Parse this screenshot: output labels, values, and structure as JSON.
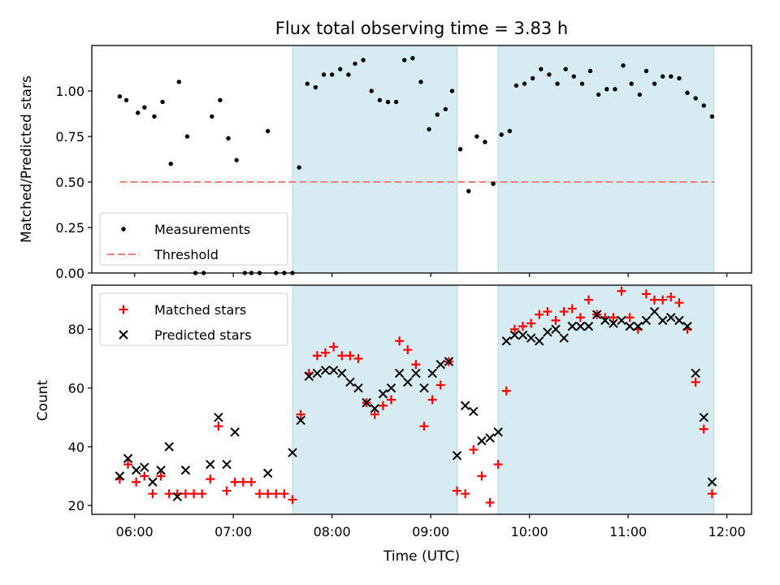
{
  "chart_title": "Flux total observing time = 3.83 h",
  "x_ticks": [
    {
      "h": 6,
      "label": "06:00"
    },
    {
      "h": 7,
      "label": "07:00"
    },
    {
      "h": 8,
      "label": "08:00"
    },
    {
      "h": 9,
      "label": "09:00"
    },
    {
      "h": 10,
      "label": "10:00"
    },
    {
      "h": 11,
      "label": "11:00"
    },
    {
      "h": 12,
      "label": "12:00"
    }
  ],
  "colors": {
    "shade": "#add8e6",
    "threshold": "#f08080",
    "matched": "#ff0000",
    "predicted": "#000000"
  },
  "chart_data": [
    {
      "type": "scatter",
      "ylabel": "Matched/Predicted stars",
      "xlim": [
        "05:34",
        "12:15"
      ],
      "ylim": [
        0,
        1.25
      ],
      "yticks": [
        "0.00",
        "0.25",
        "0.50",
        "0.75",
        "1.00"
      ],
      "shaded_ranges": [
        [
          "07:36",
          "09:16"
        ],
        [
          "09:41",
          "11:52"
        ]
      ],
      "threshold": {
        "name": "Threshold",
        "y": 0.5,
        "x_from": "05:51",
        "x_to": "11:52"
      },
      "legend": [
        "Measurements",
        "Threshold"
      ],
      "legend_loc": "lower left",
      "series": [
        {
          "name": "Measurements",
          "points": [
            [
              "05:51",
              0.97
            ],
            [
              "05:55",
              0.95
            ],
            [
              "06:02",
              0.88
            ],
            [
              "06:06",
              0.91
            ],
            [
              "06:12",
              0.86
            ],
            [
              "06:17",
              0.94
            ],
            [
              "06:22",
              0.6
            ],
            [
              "06:27",
              1.05
            ],
            [
              "06:32",
              0.75
            ],
            [
              "06:37",
              0.0
            ],
            [
              "06:42",
              0.0
            ],
            [
              "06:47",
              0.86
            ],
            [
              "06:52",
              0.95
            ],
            [
              "06:57",
              0.74
            ],
            [
              "07:02",
              0.62
            ],
            [
              "07:07",
              0.0
            ],
            [
              "07:11",
              0.0
            ],
            [
              "07:16",
              0.0
            ],
            [
              "07:21",
              0.78
            ],
            [
              "07:26",
              0.0
            ],
            [
              "07:31",
              0.0
            ],
            [
              "07:36",
              0.0
            ],
            [
              "07:40",
              0.58
            ],
            [
              "07:45",
              1.04
            ],
            [
              "07:50",
              1.02
            ],
            [
              "07:55",
              1.09
            ],
            [
              "08:00",
              1.09
            ],
            [
              "08:05",
              1.12
            ],
            [
              "08:10",
              1.09
            ],
            [
              "08:14",
              1.15
            ],
            [
              "08:19",
              1.17
            ],
            [
              "08:24",
              1.0
            ],
            [
              "08:29",
              0.95
            ],
            [
              "08:34",
              0.94
            ],
            [
              "08:39",
              0.94
            ],
            [
              "08:44",
              1.17
            ],
            [
              "08:49",
              1.18
            ],
            [
              "08:54",
              1.05
            ],
            [
              "08:59",
              0.79
            ],
            [
              "09:04",
              0.87
            ],
            [
              "09:09",
              0.9
            ],
            [
              "09:13",
              1.0
            ],
            [
              "09:18",
              0.68
            ],
            [
              "09:23",
              0.45
            ],
            [
              "09:28",
              0.75
            ],
            [
              "09:33",
              0.72
            ],
            [
              "09:38",
              0.49
            ],
            [
              "09:43",
              0.76
            ],
            [
              "09:48",
              0.78
            ],
            [
              "09:52",
              1.03
            ],
            [
              "09:57",
              1.04
            ],
            [
              "10:02",
              1.07
            ],
            [
              "10:07",
              1.12
            ],
            [
              "10:12",
              1.09
            ],
            [
              "10:17",
              1.04
            ],
            [
              "10:22",
              1.12
            ],
            [
              "10:27",
              1.08
            ],
            [
              "10:32",
              1.04
            ],
            [
              "10:37",
              1.11
            ],
            [
              "10:42",
              0.98
            ],
            [
              "10:47",
              1.01
            ],
            [
              "10:52",
              1.01
            ],
            [
              "10:57",
              1.14
            ],
            [
              "11:02",
              1.04
            ],
            [
              "11:07",
              0.98
            ],
            [
              "11:11",
              1.11
            ],
            [
              "11:16",
              1.04
            ],
            [
              "11:21",
              1.08
            ],
            [
              "11:26",
              1.08
            ],
            [
              "11:31",
              1.07
            ],
            [
              "11:36",
              0.99
            ],
            [
              "11:41",
              0.96
            ],
            [
              "11:46",
              0.92
            ],
            [
              "11:51",
              0.86
            ]
          ]
        }
      ]
    },
    {
      "type": "scatter",
      "xlabel": "Time (UTC)",
      "ylabel": "Count",
      "xlim": [
        "05:34",
        "12:15"
      ],
      "ylim": [
        17,
        95
      ],
      "yticks": [
        "20",
        "40",
        "60",
        "80"
      ],
      "shaded_ranges": [
        [
          "07:36",
          "09:16"
        ],
        [
          "09:41",
          "11:52"
        ]
      ],
      "legend": [
        "Matched stars",
        "Predicted stars"
      ],
      "legend_loc": "upper left",
      "series": [
        {
          "name": "Matched stars",
          "marker": "+",
          "points": [
            [
              "05:51",
              29
            ],
            [
              "05:56",
              34
            ],
            [
              "06:01",
              28
            ],
            [
              "06:06",
              30
            ],
            [
              "06:11",
              24
            ],
            [
              "06:16",
              30
            ],
            [
              "06:21",
              24
            ],
            [
              "06:26",
              24
            ],
            [
              "06:31",
              24
            ],
            [
              "06:36",
              24
            ],
            [
              "06:41",
              24
            ],
            [
              "06:46",
              29
            ],
            [
              "06:51",
              47
            ],
            [
              "06:56",
              25
            ],
            [
              "07:01",
              28
            ],
            [
              "07:06",
              28
            ],
            [
              "07:11",
              28
            ],
            [
              "07:16",
              24
            ],
            [
              "07:21",
              24
            ],
            [
              "07:26",
              24
            ],
            [
              "07:31",
              24
            ],
            [
              "07:36",
              22
            ],
            [
              "07:41",
              51
            ],
            [
              "07:46",
              65
            ],
            [
              "07:51",
              71
            ],
            [
              "07:56",
              72
            ],
            [
              "08:01",
              74
            ],
            [
              "08:06",
              71
            ],
            [
              "08:11",
              71
            ],
            [
              "08:16",
              70
            ],
            [
              "08:21",
              55
            ],
            [
              "08:26",
              51
            ],
            [
              "08:31",
              54
            ],
            [
              "08:36",
              56
            ],
            [
              "08:41",
              76
            ],
            [
              "08:46",
              73
            ],
            [
              "08:51",
              68
            ],
            [
              "08:56",
              47
            ],
            [
              "09:01",
              56
            ],
            [
              "09:06",
              61
            ],
            [
              "09:11",
              69
            ],
            [
              "09:16",
              25
            ],
            [
              "09:21",
              24
            ],
            [
              "09:26",
              39
            ],
            [
              "09:31",
              30
            ],
            [
              "09:36",
              21
            ],
            [
              "09:41",
              34
            ],
            [
              "09:46",
              59
            ],
            [
              "09:51",
              80
            ],
            [
              "09:56",
              81
            ],
            [
              "10:01",
              82
            ],
            [
              "10:06",
              85
            ],
            [
              "10:11",
              86
            ],
            [
              "10:16",
              83
            ],
            [
              "10:21",
              86
            ],
            [
              "10:26",
              87
            ],
            [
              "10:31",
              84
            ],
            [
              "10:36",
              90
            ],
            [
              "10:41",
              85
            ],
            [
              "10:46",
              84
            ],
            [
              "10:51",
              84
            ],
            [
              "10:56",
              93
            ],
            [
              "11:01",
              84
            ],
            [
              "11:06",
              80
            ],
            [
              "11:11",
              92
            ],
            [
              "11:16",
              90
            ],
            [
              "11:21",
              90
            ],
            [
              "11:26",
              91
            ],
            [
              "11:31",
              89
            ],
            [
              "11:36",
              80
            ],
            [
              "11:41",
              62
            ],
            [
              "11:46",
              46
            ],
            [
              "11:51",
              24
            ]
          ]
        },
        {
          "name": "Predicted stars",
          "marker": "x",
          "points": [
            [
              "05:51",
              30
            ],
            [
              "05:56",
              36
            ],
            [
              "06:01",
              32
            ],
            [
              "06:06",
              33
            ],
            [
              "06:11",
              28
            ],
            [
              "06:16",
              32
            ],
            [
              "06:21",
              40
            ],
            [
              "06:26",
              23
            ],
            [
              "06:31",
              32
            ],
            [
              "06:46",
              34
            ],
            [
              "06:51",
              50
            ],
            [
              "06:56",
              34
            ],
            [
              "07:01",
              45
            ],
            [
              "07:21",
              31
            ],
            [
              "07:36",
              38
            ],
            [
              "07:41",
              49
            ],
            [
              "07:46",
              64
            ],
            [
              "07:51",
              65
            ],
            [
              "07:56",
              66
            ],
            [
              "08:01",
              66
            ],
            [
              "08:06",
              65
            ],
            [
              "08:11",
              62
            ],
            [
              "08:16",
              60
            ],
            [
              "08:21",
              55
            ],
            [
              "08:26",
              53
            ],
            [
              "08:31",
              58
            ],
            [
              "08:36",
              60
            ],
            [
              "08:41",
              65
            ],
            [
              "08:46",
              62
            ],
            [
              "08:51",
              65
            ],
            [
              "08:56",
              60
            ],
            [
              "09:01",
              65
            ],
            [
              "09:06",
              68
            ],
            [
              "09:11",
              69
            ],
            [
              "09:16",
              37
            ],
            [
              "09:21",
              54
            ],
            [
              "09:26",
              52
            ],
            [
              "09:31",
              42
            ],
            [
              "09:36",
              43
            ],
            [
              "09:41",
              45
            ],
            [
              "09:46",
              76
            ],
            [
              "09:51",
              78
            ],
            [
              "09:56",
              78
            ],
            [
              "10:01",
              77
            ],
            [
              "10:06",
              76
            ],
            [
              "10:11",
              79
            ],
            [
              "10:16",
              80
            ],
            [
              "10:21",
              77
            ],
            [
              "10:26",
              81
            ],
            [
              "10:31",
              81
            ],
            [
              "10:36",
              81
            ],
            [
              "10:41",
              85
            ],
            [
              "10:46",
              83
            ],
            [
              "10:51",
              82
            ],
            [
              "10:56",
              83
            ],
            [
              "11:01",
              81
            ],
            [
              "11:06",
              81
            ],
            [
              "11:11",
              83
            ],
            [
              "11:16",
              86
            ],
            [
              "11:21",
              83
            ],
            [
              "11:26",
              84
            ],
            [
              "11:31",
              83
            ],
            [
              "11:36",
              81
            ],
            [
              "11:41",
              65
            ],
            [
              "11:46",
              50
            ],
            [
              "11:51",
              28
            ]
          ]
        }
      ]
    }
  ]
}
